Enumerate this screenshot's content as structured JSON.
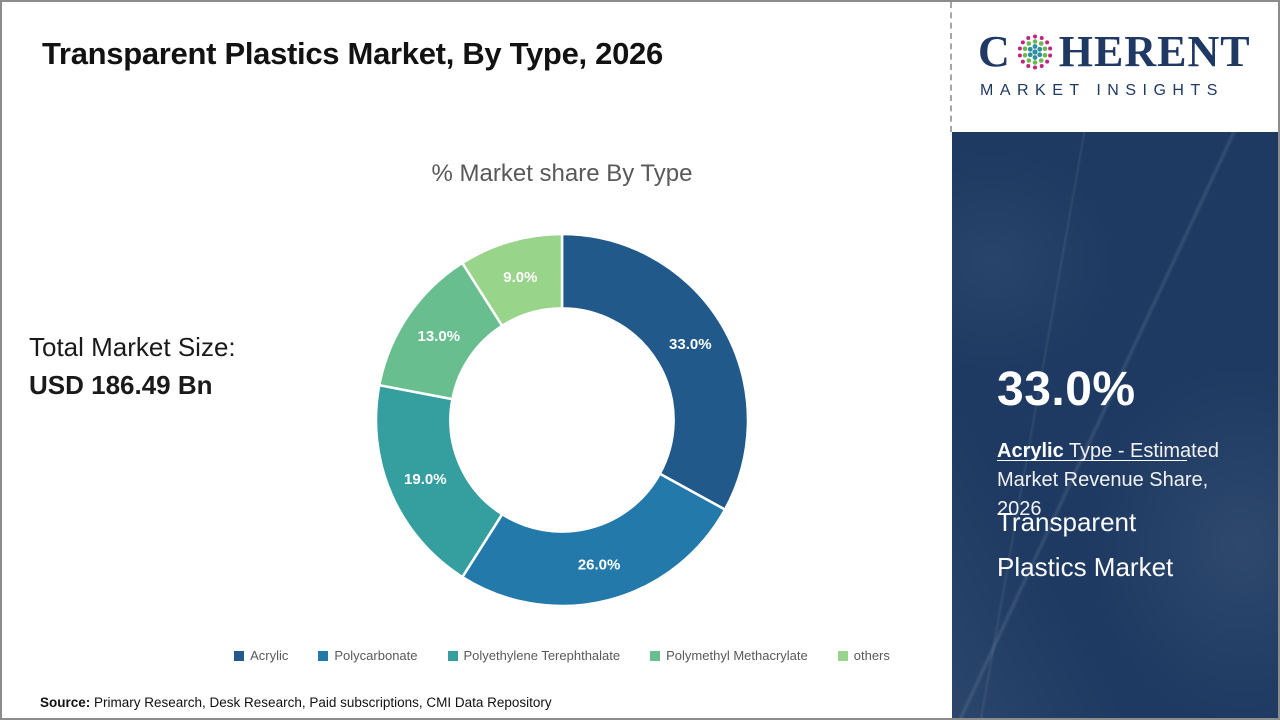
{
  "header": {
    "title": "Transparent Plastics Market, By Type, 2026"
  },
  "logo": {
    "brand_start": "C",
    "brand_end": "HERENT",
    "tagline": "MARKET INSIGHTS",
    "navy": "#1F3864",
    "globe_colors": {
      "inner": "#2E8FA0",
      "middle": "#6CB84D",
      "outer": "#C02383"
    }
  },
  "left_panel": {
    "total_label": "Total Market Size:",
    "total_value": "USD 186.49 Bn"
  },
  "chart_data": {
    "type": "pie",
    "variant": "donut",
    "title": "% Market share By Type",
    "start_angle_deg": 0,
    "direction": "clockwise",
    "inner_radius_ratio": 0.6,
    "legend_position": "bottom",
    "series": [
      {
        "name": "Acrylic",
        "value": 33.0,
        "label": "33.0%",
        "color": "#20598A"
      },
      {
        "name": "Polycarbonate",
        "value": 26.0,
        "label": "26.0%",
        "color": "#2379A9"
      },
      {
        "name": "Polyethylene Terephthalate",
        "value": 19.0,
        "label": "19.0%",
        "color": "#359E9E"
      },
      {
        "name": "Polymethyl Methacrylate",
        "value": 13.0,
        "label": "13.0%",
        "color": "#68BE8E"
      },
      {
        "name": "others",
        "value": 9.0,
        "label": "9.0%",
        "color": "#98D489"
      }
    ]
  },
  "sidebar": {
    "bg_color": "#1E3A62",
    "stat_value": "33.0%",
    "stat_desc_bold": "Acrylic",
    "stat_desc_rest": " Type - Estimated Market Revenue Share, 2026",
    "market_name_line1": "Transparent",
    "market_name_line2": "Plastics Market"
  },
  "footer": {
    "source_label": "Source:",
    "source_text": " Primary Research, Desk Research, Paid subscriptions, CMI Data Repository"
  }
}
